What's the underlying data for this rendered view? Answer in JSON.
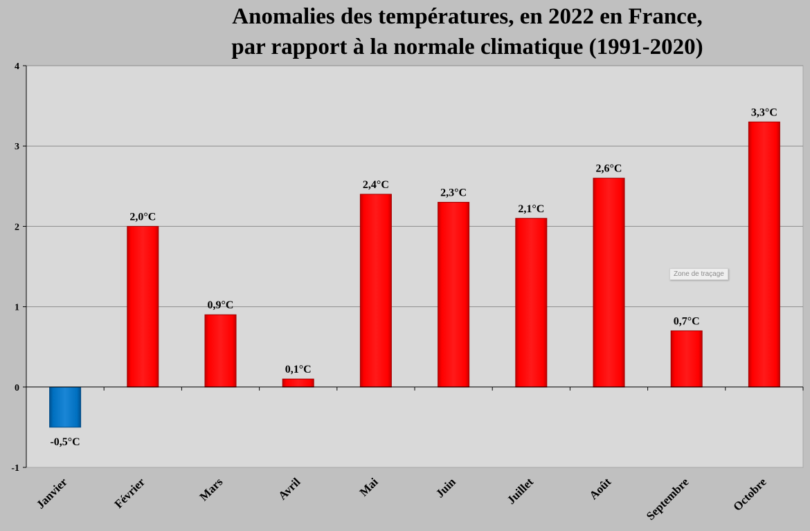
{
  "colors": {
    "background": "#c0c0c0",
    "plot_area": "#d9d9d9",
    "positive_bar": "#ff0000",
    "negative_bar": "#0070c0",
    "gridline": "#8c8c8c"
  },
  "chart_data": {
    "type": "bar",
    "title": [
      "Anomalies des températures, en 2022 en France,",
      "par rapport à la normale climatique (1991-2020)"
    ],
    "xlabel": "",
    "ylabel": "",
    "categories": [
      "Janvier",
      "Février",
      "Mars",
      "Avril",
      "Mai",
      "Juin",
      "Juillet",
      "Août",
      "Septembre",
      "Octobre"
    ],
    "values": [
      -0.5,
      2.0,
      0.9,
      0.1,
      2.4,
      2.3,
      2.1,
      2.6,
      0.7,
      3.3
    ],
    "data_labels": [
      "-0,5°C",
      "2,0°C",
      "0,9°C",
      "0,1°C",
      "2,4°C",
      "2,3°C",
      "2,1°C",
      "2,6°C",
      "0,7°C",
      "3,3°C"
    ],
    "ylim": [
      -1,
      4
    ],
    "yticks": [
      -1,
      0,
      1,
      2,
      3,
      4
    ],
    "ytick_labels": [
      "-1",
      "0",
      "1",
      "2",
      "3",
      "4"
    ],
    "grid": true,
    "legend": "none"
  },
  "tooltip": {
    "text": "Zone de traçage"
  }
}
